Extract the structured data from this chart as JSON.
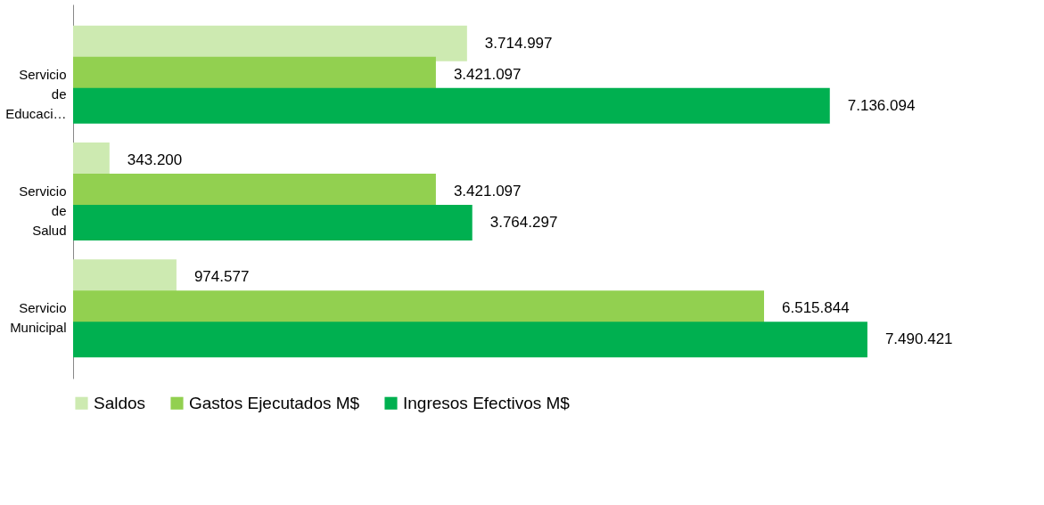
{
  "chart_data": {
    "type": "bar",
    "orientation": "horizontal",
    "categories": [
      "Servicio de Educaci…",
      "Servicio de Salud",
      "Servicio Municipal"
    ],
    "series": [
      {
        "name": "Saldos",
        "color": "#cdeab1",
        "values": [
          3714997,
          343200,
          974577
        ],
        "value_labels": [
          "3.714.997",
          "343.200",
          "974.577"
        ]
      },
      {
        "name": "Gastos Ejecutados M$",
        "color": "#92d050",
        "values": [
          3421097,
          3421097,
          6515844
        ],
        "value_labels": [
          "3.421.097",
          "3.421.097",
          "6.515.844"
        ]
      },
      {
        "name": "Ingresos Efectivos M$",
        "color": "#00b050",
        "values": [
          7136094,
          3764297,
          7490421
        ],
        "value_labels": [
          "7.136.094",
          "3.764.297",
          "7.490.421"
        ]
      }
    ],
    "legend": "bottom",
    "grid": false
  }
}
